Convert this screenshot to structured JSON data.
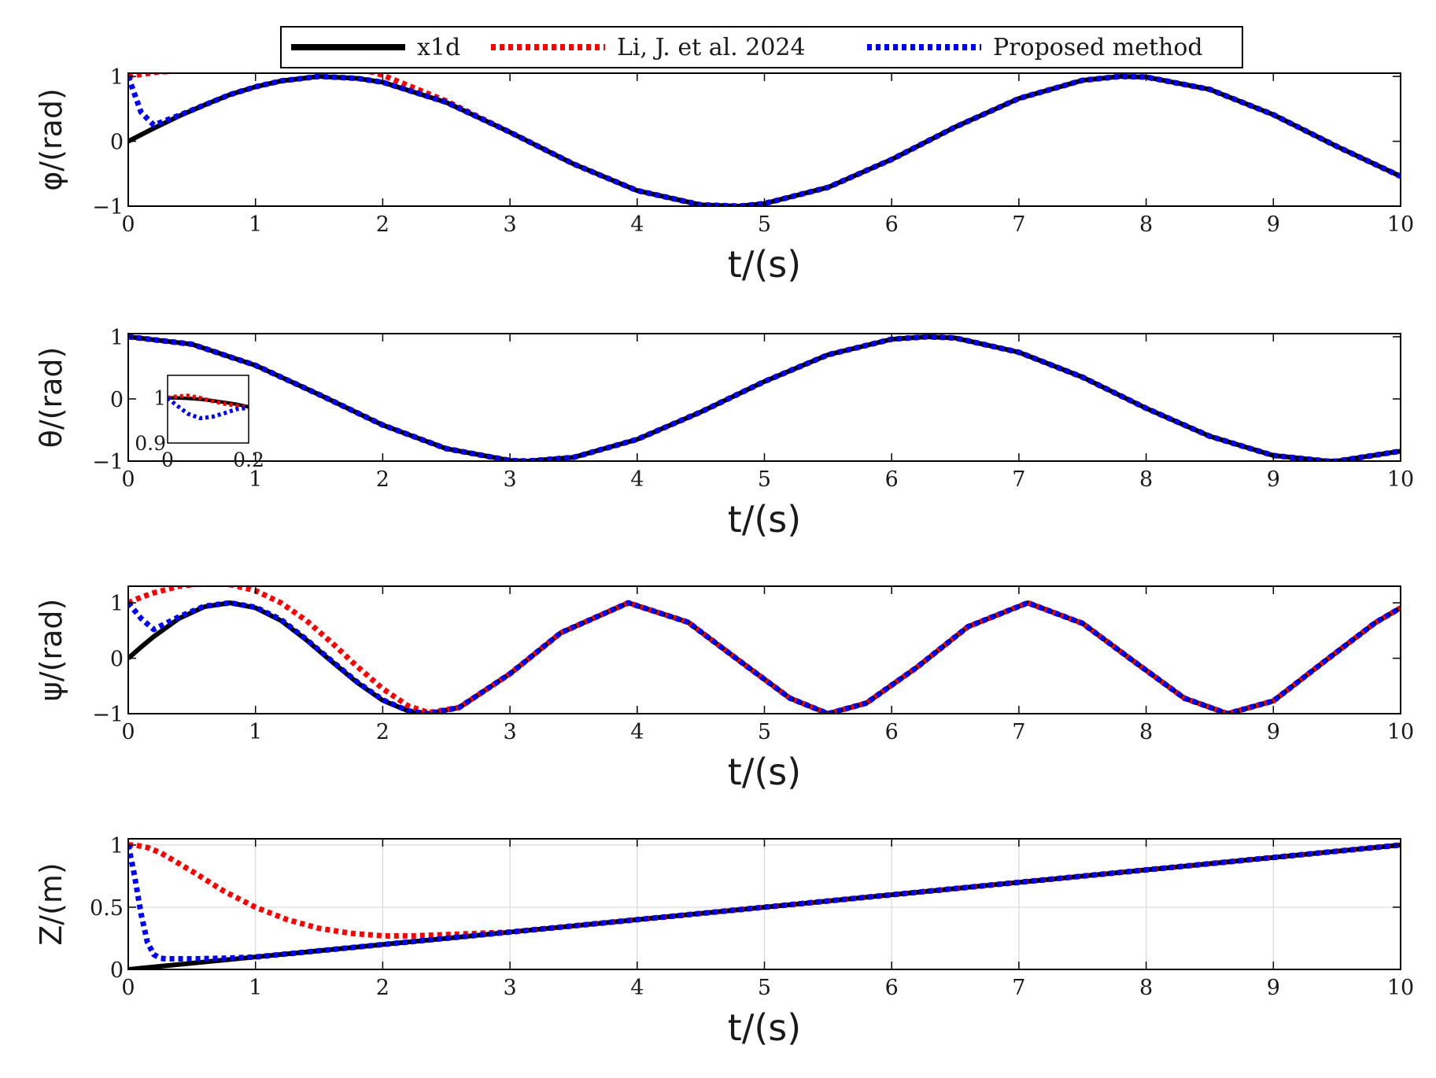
{
  "legend": {
    "entries": [
      {
        "label": "x1d",
        "color": "#000000",
        "style": "solid"
      },
      {
        "label": "Li, J. et al. 2024",
        "color": "#ff0000",
        "style": "dotted"
      },
      {
        "label": "Proposed method",
        "color": "#0000ff",
        "style": "dotted"
      }
    ]
  },
  "chart_data": [
    {
      "type": "line",
      "ylabel": "φ/(rad)",
      "xlabel": "t/(s)",
      "xlim": [
        0,
        10
      ],
      "ylim": [
        -1,
        1.05
      ],
      "xticks": [
        "0",
        "1",
        "2",
        "3",
        "4",
        "5",
        "6",
        "7",
        "8",
        "9",
        "10"
      ],
      "yticks": [
        {
          "v": 1,
          "label": "1"
        },
        {
          "v": 0,
          "label": "0"
        },
        {
          "v": -1,
          "label": "−1"
        }
      ],
      "grid": false,
      "x": [
        0,
        0.1,
        0.2,
        0.4,
        0.6,
        0.8,
        1.0,
        1.2,
        1.5,
        1.8,
        2.0,
        2.5,
        3.0,
        3.5,
        4.0,
        4.5,
        4.8,
        5.0,
        5.5,
        6.0,
        6.5,
        7.0,
        7.5,
        7.8,
        8.0,
        8.5,
        9.0,
        9.5,
        10.0
      ],
      "series": [
        {
          "name": "x1d",
          "y": [
            0.0,
            0.1,
            0.2,
            0.39,
            0.56,
            0.72,
            0.84,
            0.93,
            1.0,
            0.97,
            0.91,
            0.6,
            0.14,
            -0.35,
            -0.76,
            -0.98,
            -1.0,
            -0.96,
            -0.71,
            -0.28,
            0.22,
            0.66,
            0.94,
            1.0,
            0.99,
            0.8,
            0.41,
            -0.08,
            -0.54
          ]
        },
        {
          "name": "Li, J. et al. 2024",
          "y": [
            1.0,
            1.03,
            1.06,
            1.09,
            1.12,
            1.14,
            1.16,
            1.17,
            1.17,
            1.13,
            1.02,
            0.62,
            0.14,
            -0.35,
            -0.76,
            -0.98,
            -1.0,
            -0.96,
            -0.71,
            -0.28,
            0.22,
            0.66,
            0.94,
            1.0,
            0.99,
            0.8,
            0.41,
            -0.08,
            -0.54
          ]
        },
        {
          "name": "Proposed method",
          "y": [
            1.0,
            0.45,
            0.25,
            0.4,
            0.56,
            0.72,
            0.84,
            0.93,
            1.0,
            0.97,
            0.91,
            0.6,
            0.14,
            -0.35,
            -0.76,
            -0.98,
            -1.0,
            -0.96,
            -0.71,
            -0.28,
            0.22,
            0.66,
            0.94,
            1.0,
            0.99,
            0.8,
            0.41,
            -0.08,
            -0.54
          ]
        }
      ]
    },
    {
      "type": "line",
      "ylabel": "θ/(rad)",
      "xlabel": "t/(s)",
      "xlim": [
        0,
        10
      ],
      "ylim": [
        -1,
        1.05
      ],
      "xticks": [
        "0",
        "1",
        "2",
        "3",
        "4",
        "5",
        "6",
        "7",
        "8",
        "9",
        "10"
      ],
      "yticks": [
        {
          "v": 1,
          "label": "1"
        },
        {
          "v": 0,
          "label": "0"
        },
        {
          "v": -1,
          "label": "−1"
        }
      ],
      "grid": false,
      "x": [
        0,
        0.5,
        1.0,
        1.5,
        2.0,
        2.5,
        3.0,
        3.14,
        3.5,
        4.0,
        4.5,
        5.0,
        5.5,
        6.0,
        6.28,
        6.5,
        7.0,
        7.5,
        8.0,
        8.5,
        9.0,
        9.42,
        9.5,
        10.0
      ],
      "series": [
        {
          "name": "x1d",
          "y": [
            1.0,
            0.88,
            0.54,
            0.07,
            -0.42,
            -0.8,
            -0.99,
            -1.0,
            -0.94,
            -0.65,
            -0.21,
            0.28,
            0.71,
            0.96,
            1.0,
            0.98,
            0.75,
            0.35,
            -0.15,
            -0.6,
            -0.91,
            -1.0,
            -1.0,
            -0.84
          ]
        },
        {
          "name": "Li, J. et al. 2024",
          "y": [
            1.0,
            0.88,
            0.54,
            0.07,
            -0.42,
            -0.8,
            -0.99,
            -1.0,
            -0.94,
            -0.65,
            -0.21,
            0.28,
            0.71,
            0.96,
            1.0,
            0.98,
            0.75,
            0.35,
            -0.15,
            -0.6,
            -0.91,
            -1.0,
            -1.0,
            -0.84
          ]
        },
        {
          "name": "Proposed method",
          "y": [
            1.0,
            0.88,
            0.54,
            0.07,
            -0.42,
            -0.8,
            -0.99,
            -1.0,
            -0.94,
            -0.65,
            -0.21,
            0.28,
            0.71,
            0.96,
            1.0,
            0.98,
            0.75,
            0.35,
            -0.15,
            -0.6,
            -0.91,
            -1.0,
            -1.0,
            -0.84
          ]
        }
      ],
      "inset": {
        "xlim": [
          0,
          0.2
        ],
        "ylim": [
          0.9,
          1.05
        ],
        "xticks": [
          "0",
          "0.2"
        ],
        "yticks": [
          {
            "v": 1,
            "label": "1"
          },
          {
            "v": 0.9,
            "label": "0.9"
          }
        ],
        "x": [
          0,
          0.02,
          0.05,
          0.08,
          0.11,
          0.14,
          0.17,
          0.2
        ],
        "series": [
          {
            "name": "x1d",
            "y": [
              1.0,
              1.0,
              0.999,
              0.997,
              0.994,
              0.99,
              0.986,
              0.98
            ]
          },
          {
            "name": "Li, J. et al. 2024",
            "y": [
              1.0,
              1.003,
              1.005,
              1.0,
              0.993,
              0.987,
              0.983,
              0.978
            ]
          },
          {
            "name": "Proposed method",
            "y": [
              1.0,
              0.985,
              0.965,
              0.955,
              0.958,
              0.966,
              0.975,
              0.978
            ]
          }
        ]
      }
    },
    {
      "type": "line",
      "ylabel": "ψ/(rad)",
      "xlabel": "t/(s)",
      "xlim": [
        0,
        10
      ],
      "ylim": [
        -1,
        1.3
      ],
      "xticks": [
        "0",
        "1",
        "2",
        "3",
        "4",
        "5",
        "6",
        "7",
        "8",
        "9",
        "10"
      ],
      "yticks": [
        {
          "v": 1,
          "label": "1"
        },
        {
          "v": 0,
          "label": "0"
        },
        {
          "v": -1,
          "label": "−1"
        }
      ],
      "grid": false,
      "x": [
        0,
        0.1,
        0.2,
        0.4,
        0.6,
        0.8,
        1.0,
        1.2,
        1.4,
        1.6,
        1.8,
        2.0,
        2.2,
        2.36,
        2.6,
        3.0,
        3.4,
        3.93,
        4.4,
        4.8,
        5.2,
        5.5,
        5.8,
        6.2,
        6.6,
        7.07,
        7.5,
        7.9,
        8.3,
        8.64,
        9.0,
        9.4,
        9.8,
        10.0
      ],
      "series": [
        {
          "name": "x1d",
          "y": [
            0.0,
            0.2,
            0.39,
            0.72,
            0.93,
            1.0,
            0.91,
            0.68,
            0.33,
            -0.06,
            -0.44,
            -0.76,
            -0.95,
            -1.0,
            -0.89,
            -0.28,
            0.46,
            1.0,
            0.65,
            -0.04,
            -0.72,
            -1.0,
            -0.81,
            -0.16,
            0.57,
            1.0,
            0.63,
            -0.05,
            -0.72,
            -1.0,
            -0.77,
            -0.06,
            0.64,
            0.91
          ]
        },
        {
          "name": "Li, J. et al. 2024",
          "y": [
            1.0,
            1.1,
            1.18,
            1.3,
            1.35,
            1.33,
            1.22,
            1.0,
            0.68,
            0.28,
            -0.15,
            -0.55,
            -0.86,
            -0.98,
            -0.89,
            -0.28,
            0.46,
            1.0,
            0.65,
            -0.04,
            -0.72,
            -1.0,
            -0.81,
            -0.16,
            0.57,
            1.0,
            0.63,
            -0.05,
            -0.72,
            -1.0,
            -0.77,
            -0.06,
            0.64,
            0.91
          ]
        },
        {
          "name": "Proposed method",
          "y": [
            1.0,
            0.72,
            0.52,
            0.75,
            0.94,
            1.0,
            0.92,
            0.7,
            0.34,
            -0.05,
            -0.43,
            -0.75,
            -0.95,
            -1.0,
            -0.89,
            -0.28,
            0.46,
            1.0,
            0.65,
            -0.04,
            -0.72,
            -1.0,
            -0.81,
            -0.16,
            0.57,
            1.0,
            0.63,
            -0.05,
            -0.72,
            -1.0,
            -0.77,
            -0.06,
            0.64,
            0.91
          ]
        }
      ]
    },
    {
      "type": "line",
      "ylabel": "Z/(m)",
      "xlabel": "t/(s)",
      "xlim": [
        0,
        10
      ],
      "ylim": [
        0,
        1.05
      ],
      "xticks": [
        "0",
        "1",
        "2",
        "3",
        "4",
        "5",
        "6",
        "7",
        "8",
        "9",
        "10"
      ],
      "yticks": [
        {
          "v": 1,
          "label": "1"
        },
        {
          "v": 0.5,
          "label": "0.5"
        },
        {
          "v": 0,
          "label": "0"
        }
      ],
      "grid": true,
      "x": [
        0,
        0.05,
        0.1,
        0.15,
        0.2,
        0.25,
        0.3,
        0.5,
        0.75,
        1.0,
        1.25,
        1.5,
        1.75,
        2.0,
        2.25,
        2.5,
        3.0,
        4.0,
        5.0,
        6.0,
        7.0,
        8.0,
        9.0,
        10.0
      ],
      "series": [
        {
          "name": "x1d",
          "y": [
            0.0,
            0.005,
            0.01,
            0.015,
            0.02,
            0.025,
            0.03,
            0.05,
            0.075,
            0.1,
            0.125,
            0.15,
            0.175,
            0.2,
            0.225,
            0.25,
            0.3,
            0.4,
            0.5,
            0.6,
            0.7,
            0.8,
            0.9,
            1.0
          ]
        },
        {
          "name": "Li, J. et al. 2024",
          "y": [
            1.0,
            1.0,
            0.99,
            0.98,
            0.96,
            0.94,
            0.91,
            0.79,
            0.63,
            0.5,
            0.4,
            0.33,
            0.29,
            0.27,
            0.27,
            0.28,
            0.3,
            0.4,
            0.5,
            0.6,
            0.7,
            0.8,
            0.9,
            1.0
          ]
        },
        {
          "name": "Proposed method",
          "y": [
            1.0,
            0.75,
            0.45,
            0.22,
            0.12,
            0.09,
            0.085,
            0.085,
            0.09,
            0.1,
            0.125,
            0.15,
            0.175,
            0.2,
            0.225,
            0.25,
            0.3,
            0.4,
            0.5,
            0.6,
            0.7,
            0.8,
            0.9,
            1.0
          ]
        }
      ]
    }
  ]
}
